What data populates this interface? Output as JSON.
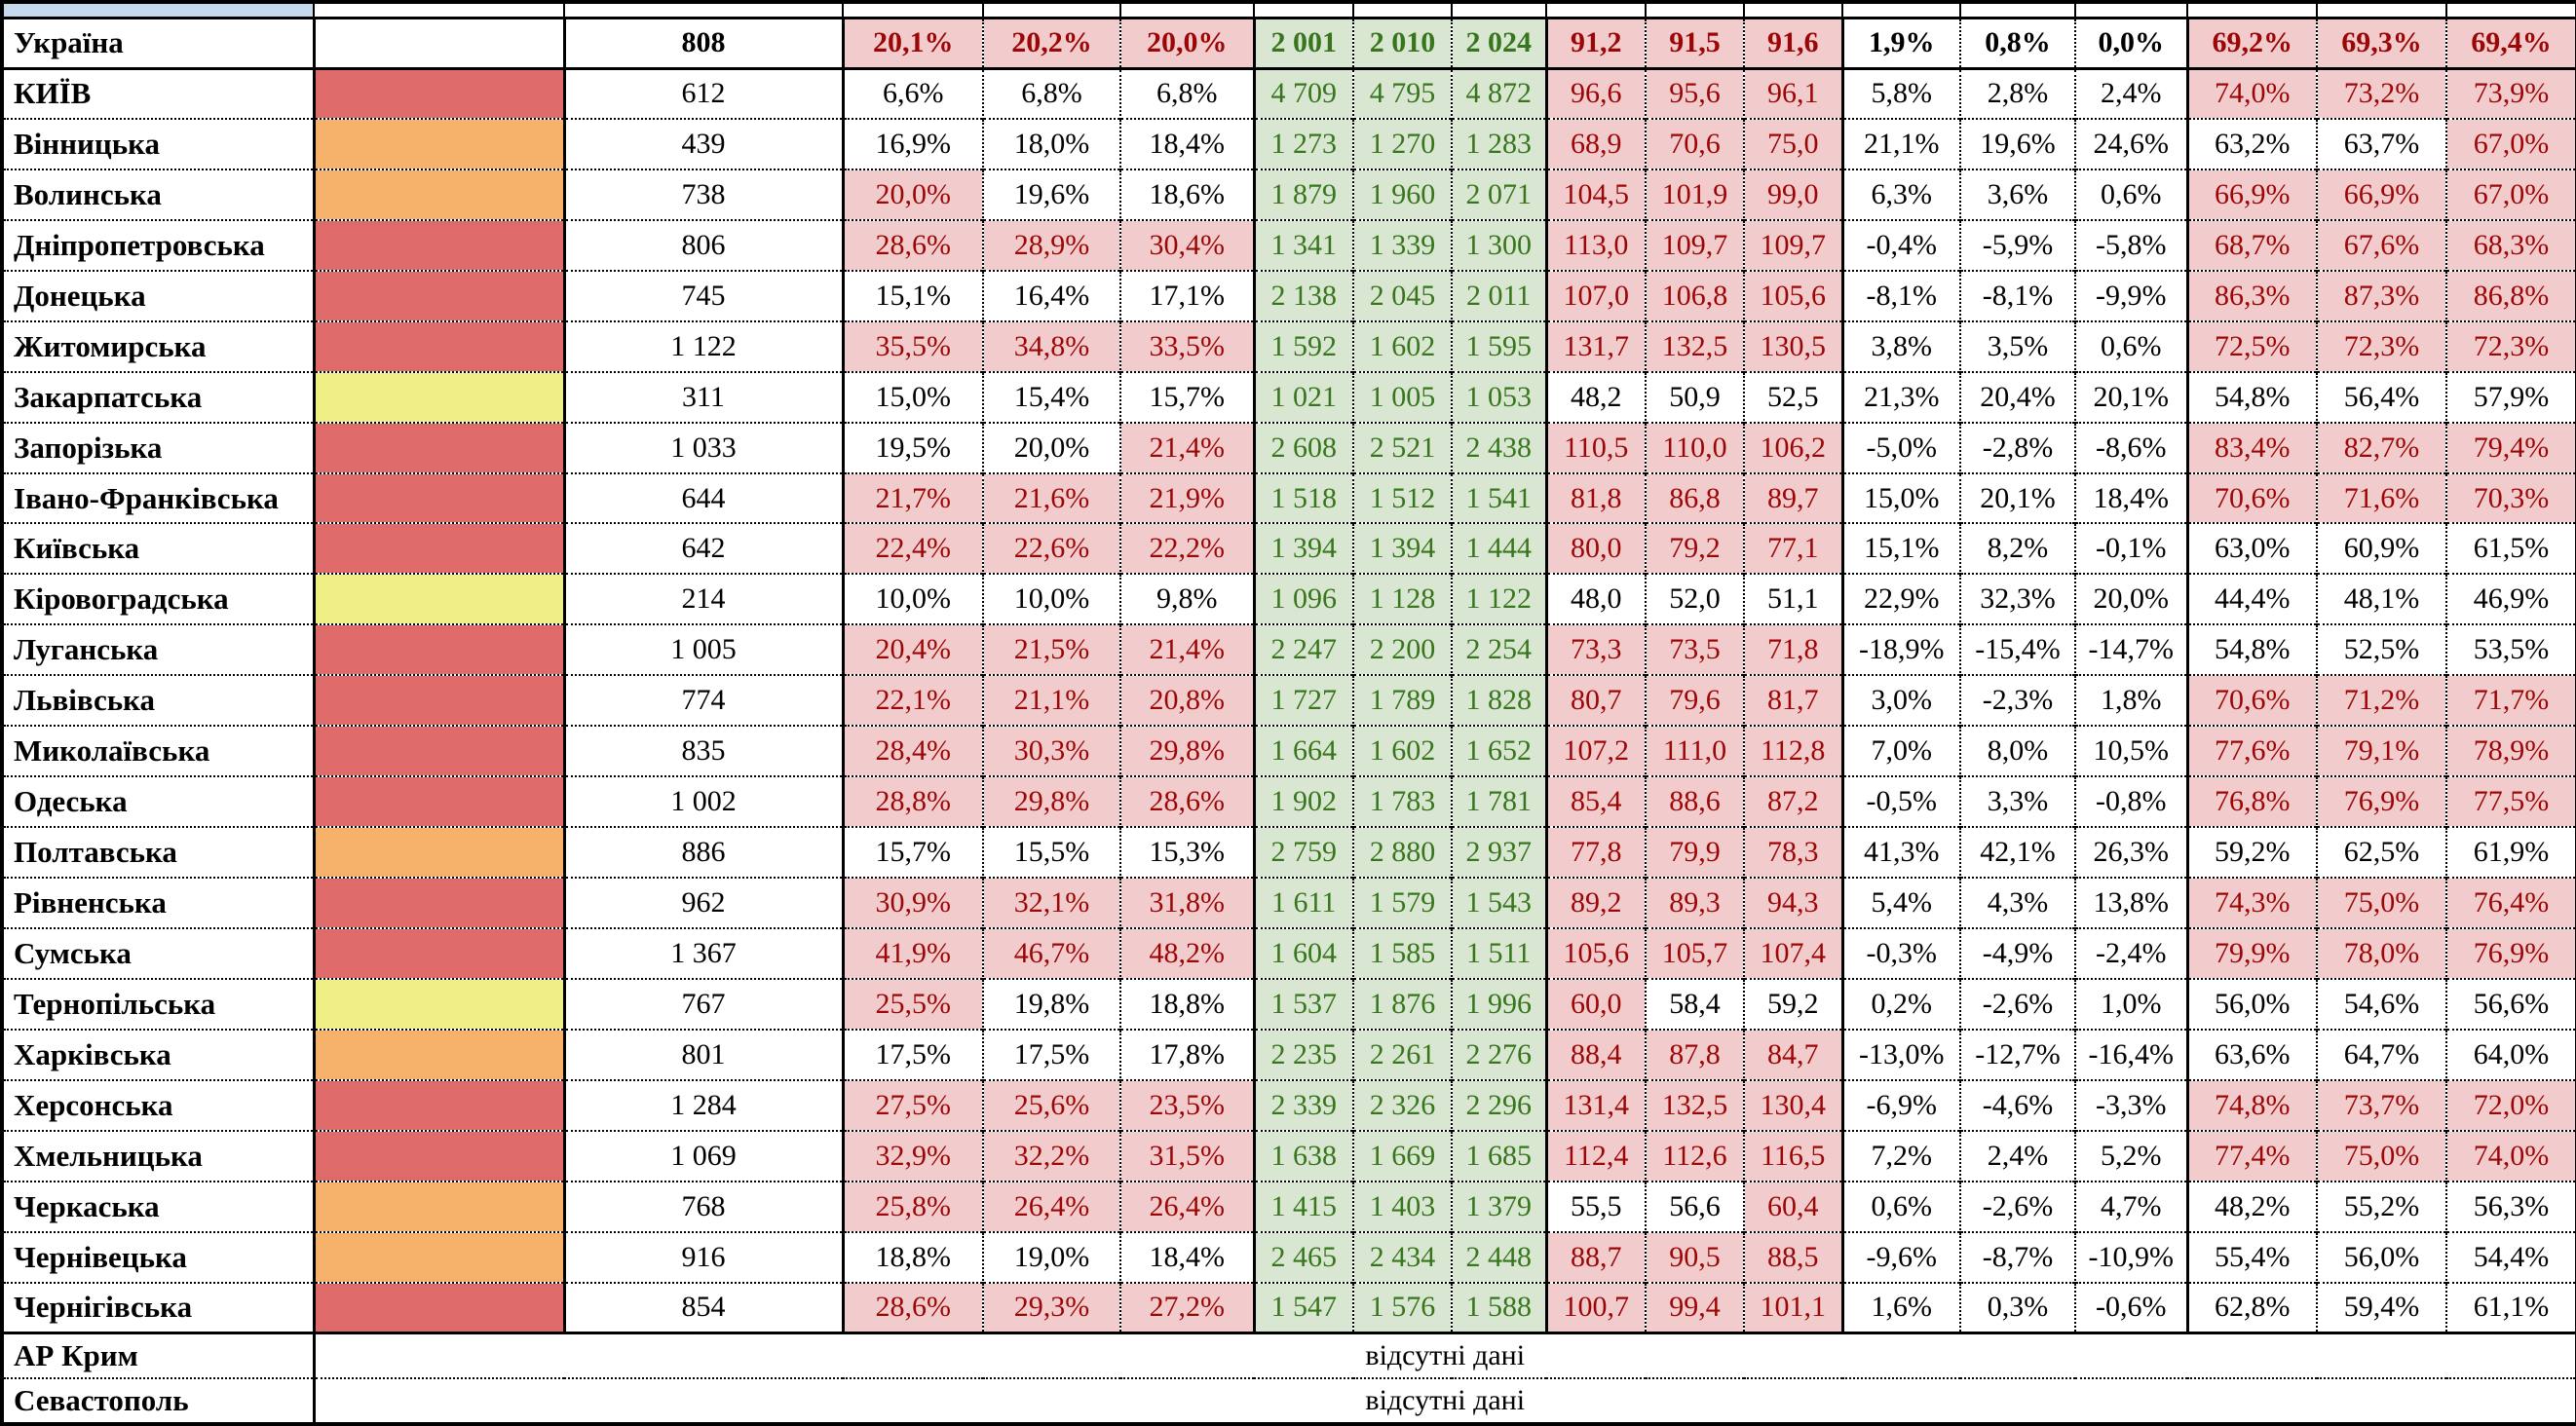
{
  "missing_data_label": "відсутні дані",
  "colors": {
    "pink_bg": "#F2CCCC",
    "dark_red_text": "#9C0606",
    "green_bg": "#D9E7D2",
    "green_text": "#38761D",
    "swatch_red": "#DE6A6A",
    "swatch_orange": "#F6B26B",
    "swatch_yellow": "#F0EF85",
    "header_blue": "#C4D9EC"
  },
  "summary": {
    "name": "Україна",
    "count": "808",
    "pct_a": [
      "20,1%",
      "20,2%",
      "20,0%"
    ],
    "pct_a_hot": [
      1,
      1,
      1
    ],
    "abs": [
      "2 001",
      "2 010",
      "2 024"
    ],
    "ratio": [
      "91,2",
      "91,5",
      "91,6"
    ],
    "ratio_hot": [
      1,
      1,
      1
    ],
    "growth": [
      "1,9%",
      "0,8%",
      "0,0%"
    ],
    "pct_b": [
      "69,2%",
      "69,3%",
      "69,4%"
    ],
    "pct_b_hot": [
      1,
      1,
      1
    ]
  },
  "rows": [
    {
      "name": "КИЇВ",
      "swatch": "red",
      "count": "612",
      "pct_a": [
        "6,6%",
        "6,8%",
        "6,8%"
      ],
      "pct_a_hot": [
        0,
        0,
        0
      ],
      "abs": [
        "4 709",
        "4 795",
        "4 872"
      ],
      "ratio": [
        "96,6",
        "95,6",
        "96,1"
      ],
      "ratio_hot": [
        1,
        1,
        1
      ],
      "growth": [
        "5,8%",
        "2,8%",
        "2,4%"
      ],
      "pct_b": [
        "74,0%",
        "73,2%",
        "73,9%"
      ],
      "pct_b_hot": [
        1,
        1,
        1
      ]
    },
    {
      "name": "Вінницька",
      "swatch": "orange",
      "count": "439",
      "pct_a": [
        "16,9%",
        "18,0%",
        "18,4%"
      ],
      "pct_a_hot": [
        0,
        0,
        0
      ],
      "abs": [
        "1 273",
        "1 270",
        "1 283"
      ],
      "ratio": [
        "68,9",
        "70,6",
        "75,0"
      ],
      "ratio_hot": [
        1,
        1,
        1
      ],
      "growth": [
        "21,1%",
        "19,6%",
        "24,6%"
      ],
      "pct_b": [
        "63,2%",
        "63,7%",
        "67,0%"
      ],
      "pct_b_hot": [
        0,
        0,
        1
      ]
    },
    {
      "name": "Волинська",
      "swatch": "orange",
      "count": "738",
      "pct_a": [
        "20,0%",
        "19,6%",
        "18,6%"
      ],
      "pct_a_hot": [
        1,
        0,
        0
      ],
      "abs": [
        "1 879",
        "1 960",
        "2 071"
      ],
      "ratio": [
        "104,5",
        "101,9",
        "99,0"
      ],
      "ratio_hot": [
        1,
        1,
        1
      ],
      "growth": [
        "6,3%",
        "3,6%",
        "0,6%"
      ],
      "pct_b": [
        "66,9%",
        "66,9%",
        "67,0%"
      ],
      "pct_b_hot": [
        1,
        1,
        1
      ]
    },
    {
      "name": "Дніпропетровська",
      "swatch": "red",
      "count": "806",
      "pct_a": [
        "28,6%",
        "28,9%",
        "30,4%"
      ],
      "pct_a_hot": [
        1,
        1,
        1
      ],
      "abs": [
        "1 341",
        "1 339",
        "1 300"
      ],
      "ratio": [
        "113,0",
        "109,7",
        "109,7"
      ],
      "ratio_hot": [
        1,
        1,
        1
      ],
      "growth": [
        "-0,4%",
        "-5,9%",
        "-5,8%"
      ],
      "pct_b": [
        "68,7%",
        "67,6%",
        "68,3%"
      ],
      "pct_b_hot": [
        1,
        1,
        1
      ]
    },
    {
      "name": "Донецька",
      "swatch": "red",
      "count": "745",
      "pct_a": [
        "15,1%",
        "16,4%",
        "17,1%"
      ],
      "pct_a_hot": [
        0,
        0,
        0
      ],
      "abs": [
        "2 138",
        "2 045",
        "2 011"
      ],
      "ratio": [
        "107,0",
        "106,8",
        "105,6"
      ],
      "ratio_hot": [
        1,
        1,
        1
      ],
      "growth": [
        "-8,1%",
        "-8,1%",
        "-9,9%"
      ],
      "pct_b": [
        "86,3%",
        "87,3%",
        "86,8%"
      ],
      "pct_b_hot": [
        1,
        1,
        1
      ]
    },
    {
      "name": "Житомирська",
      "swatch": "red",
      "count": "1 122",
      "pct_a": [
        "35,5%",
        "34,8%",
        "33,5%"
      ],
      "pct_a_hot": [
        1,
        1,
        1
      ],
      "abs": [
        "1 592",
        "1 602",
        "1 595"
      ],
      "ratio": [
        "131,7",
        "132,5",
        "130,5"
      ],
      "ratio_hot": [
        1,
        1,
        1
      ],
      "growth": [
        "3,8%",
        "3,5%",
        "0,6%"
      ],
      "pct_b": [
        "72,5%",
        "72,3%",
        "72,3%"
      ],
      "pct_b_hot": [
        1,
        1,
        1
      ]
    },
    {
      "name": "Закарпатська",
      "swatch": "yellow",
      "count": "311",
      "pct_a": [
        "15,0%",
        "15,4%",
        "15,7%"
      ],
      "pct_a_hot": [
        0,
        0,
        0
      ],
      "abs": [
        "1 021",
        "1 005",
        "1 053"
      ],
      "ratio": [
        "48,2",
        "50,9",
        "52,5"
      ],
      "ratio_hot": [
        0,
        0,
        0
      ],
      "growth": [
        "21,3%",
        "20,4%",
        "20,1%"
      ],
      "pct_b": [
        "54,8%",
        "56,4%",
        "57,9%"
      ],
      "pct_b_hot": [
        0,
        0,
        0
      ]
    },
    {
      "name": "Запорізька",
      "swatch": "red",
      "count": "1 033",
      "pct_a": [
        "19,5%",
        "20,0%",
        "21,4%"
      ],
      "pct_a_hot": [
        0,
        0,
        1
      ],
      "abs": [
        "2 608",
        "2 521",
        "2 438"
      ],
      "ratio": [
        "110,5",
        "110,0",
        "106,2"
      ],
      "ratio_hot": [
        1,
        1,
        1
      ],
      "growth": [
        "-5,0%",
        "-2,8%",
        "-8,6%"
      ],
      "pct_b": [
        "83,4%",
        "82,7%",
        "79,4%"
      ],
      "pct_b_hot": [
        1,
        1,
        1
      ]
    },
    {
      "name": "Івано-Франківська",
      "swatch": "red",
      "count": "644",
      "pct_a": [
        "21,7%",
        "21,6%",
        "21,9%"
      ],
      "pct_a_hot": [
        1,
        1,
        1
      ],
      "abs": [
        "1 518",
        "1 512",
        "1 541"
      ],
      "ratio": [
        "81,8",
        "86,8",
        "89,7"
      ],
      "ratio_hot": [
        1,
        1,
        1
      ],
      "growth": [
        "15,0%",
        "20,1%",
        "18,4%"
      ],
      "pct_b": [
        "70,6%",
        "71,6%",
        "70,3%"
      ],
      "pct_b_hot": [
        1,
        1,
        1
      ]
    },
    {
      "name": "Київська",
      "swatch": "red",
      "count": "642",
      "pct_a": [
        "22,4%",
        "22,6%",
        "22,2%"
      ],
      "pct_a_hot": [
        1,
        1,
        1
      ],
      "abs": [
        "1 394",
        "1 394",
        "1 444"
      ],
      "ratio": [
        "80,0",
        "79,2",
        "77,1"
      ],
      "ratio_hot": [
        1,
        1,
        1
      ],
      "growth": [
        "15,1%",
        "8,2%",
        "-0,1%"
      ],
      "pct_b": [
        "63,0%",
        "60,9%",
        "61,5%"
      ],
      "pct_b_hot": [
        0,
        0,
        0
      ]
    },
    {
      "name": "Кіровоградська",
      "swatch": "yellow",
      "count": "214",
      "pct_a": [
        "10,0%",
        "10,0%",
        "9,8%"
      ],
      "pct_a_hot": [
        0,
        0,
        0
      ],
      "abs": [
        "1 096",
        "1 128",
        "1 122"
      ],
      "ratio": [
        "48,0",
        "52,0",
        "51,1"
      ],
      "ratio_hot": [
        0,
        0,
        0
      ],
      "growth": [
        "22,9%",
        "32,3%",
        "20,0%"
      ],
      "pct_b": [
        "44,4%",
        "48,1%",
        "46,9%"
      ],
      "pct_b_hot": [
        0,
        0,
        0
      ]
    },
    {
      "name": "Луганська",
      "swatch": "red",
      "count": "1 005",
      "pct_a": [
        "20,4%",
        "21,5%",
        "21,4%"
      ],
      "pct_a_hot": [
        1,
        1,
        1
      ],
      "abs": [
        "2 247",
        "2 200",
        "2 254"
      ],
      "ratio": [
        "73,3",
        "73,5",
        "71,8"
      ],
      "ratio_hot": [
        1,
        1,
        1
      ],
      "growth": [
        "-18,9%",
        "-15,4%",
        "-14,7%"
      ],
      "pct_b": [
        "54,8%",
        "52,5%",
        "53,5%"
      ],
      "pct_b_hot": [
        0,
        0,
        0
      ]
    },
    {
      "name": "Львівська",
      "swatch": "red",
      "count": "774",
      "pct_a": [
        "22,1%",
        "21,1%",
        "20,8%"
      ],
      "pct_a_hot": [
        1,
        1,
        1
      ],
      "abs": [
        "1 727",
        "1 789",
        "1 828"
      ],
      "ratio": [
        "80,7",
        "79,6",
        "81,7"
      ],
      "ratio_hot": [
        1,
        1,
        1
      ],
      "growth": [
        "3,0%",
        "-2,3%",
        "1,8%"
      ],
      "pct_b": [
        "70,6%",
        "71,2%",
        "71,7%"
      ],
      "pct_b_hot": [
        1,
        1,
        1
      ]
    },
    {
      "name": "Миколаївська",
      "swatch": "red",
      "count": "835",
      "pct_a": [
        "28,4%",
        "30,3%",
        "29,8%"
      ],
      "pct_a_hot": [
        1,
        1,
        1
      ],
      "abs": [
        "1 664",
        "1 602",
        "1 652"
      ],
      "ratio": [
        "107,2",
        "111,0",
        "112,8"
      ],
      "ratio_hot": [
        1,
        1,
        1
      ],
      "growth": [
        "7,0%",
        "8,0%",
        "10,5%"
      ],
      "pct_b": [
        "77,6%",
        "79,1%",
        "78,9%"
      ],
      "pct_b_hot": [
        1,
        1,
        1
      ]
    },
    {
      "name": "Одеська",
      "swatch": "red",
      "count": "1 002",
      "pct_a": [
        "28,8%",
        "29,8%",
        "28,6%"
      ],
      "pct_a_hot": [
        1,
        1,
        1
      ],
      "abs": [
        "1 902",
        "1 783",
        "1 781"
      ],
      "ratio": [
        "85,4",
        "88,6",
        "87,2"
      ],
      "ratio_hot": [
        1,
        1,
        1
      ],
      "growth": [
        "-0,5%",
        "3,3%",
        "-0,8%"
      ],
      "pct_b": [
        "76,8%",
        "76,9%",
        "77,5%"
      ],
      "pct_b_hot": [
        1,
        1,
        1
      ]
    },
    {
      "name": "Полтавська",
      "swatch": "orange",
      "count": "886",
      "pct_a": [
        "15,7%",
        "15,5%",
        "15,3%"
      ],
      "pct_a_hot": [
        0,
        0,
        0
      ],
      "abs": [
        "2 759",
        "2 880",
        "2 937"
      ],
      "ratio": [
        "77,8",
        "79,9",
        "78,3"
      ],
      "ratio_hot": [
        1,
        1,
        1
      ],
      "growth": [
        "41,3%",
        "42,1%",
        "26,3%"
      ],
      "pct_b": [
        "59,2%",
        "62,5%",
        "61,9%"
      ],
      "pct_b_hot": [
        0,
        0,
        0
      ]
    },
    {
      "name": "Рівненська",
      "swatch": "red",
      "count": "962",
      "pct_a": [
        "30,9%",
        "32,1%",
        "31,8%"
      ],
      "pct_a_hot": [
        1,
        1,
        1
      ],
      "abs": [
        "1 611",
        "1 579",
        "1 543"
      ],
      "ratio": [
        "89,2",
        "89,3",
        "94,3"
      ],
      "ratio_hot": [
        1,
        1,
        1
      ],
      "growth": [
        "5,4%",
        "4,3%",
        "13,8%"
      ],
      "pct_b": [
        "74,3%",
        "75,0%",
        "76,4%"
      ],
      "pct_b_hot": [
        1,
        1,
        1
      ]
    },
    {
      "name": "Сумська",
      "swatch": "red",
      "count": "1 367",
      "pct_a": [
        "41,9%",
        "46,7%",
        "48,2%"
      ],
      "pct_a_hot": [
        1,
        1,
        1
      ],
      "abs": [
        "1 604",
        "1 585",
        "1 511"
      ],
      "ratio": [
        "105,6",
        "105,7",
        "107,4"
      ],
      "ratio_hot": [
        1,
        1,
        1
      ],
      "growth": [
        "-0,3%",
        "-4,9%",
        "-2,4%"
      ],
      "pct_b": [
        "79,9%",
        "78,0%",
        "76,9%"
      ],
      "pct_b_hot": [
        1,
        1,
        1
      ]
    },
    {
      "name": "Тернопільська",
      "swatch": "yellow",
      "count": "767",
      "pct_a": [
        "25,5%",
        "19,8%",
        "18,8%"
      ],
      "pct_a_hot": [
        1,
        0,
        0
      ],
      "abs": [
        "1 537",
        "1 876",
        "1 996"
      ],
      "ratio": [
        "60,0",
        "58,4",
        "59,2"
      ],
      "ratio_hot": [
        1,
        0,
        0
      ],
      "growth": [
        "0,2%",
        "-2,6%",
        "1,0%"
      ],
      "pct_b": [
        "56,0%",
        "54,6%",
        "56,6%"
      ],
      "pct_b_hot": [
        0,
        0,
        0
      ]
    },
    {
      "name": "Харківська",
      "swatch": "orange",
      "count": "801",
      "pct_a": [
        "17,5%",
        "17,5%",
        "17,8%"
      ],
      "pct_a_hot": [
        0,
        0,
        0
      ],
      "abs": [
        "2 235",
        "2 261",
        "2 276"
      ],
      "ratio": [
        "88,4",
        "87,8",
        "84,7"
      ],
      "ratio_hot": [
        1,
        1,
        1
      ],
      "growth": [
        "-13,0%",
        "-12,7%",
        "-16,4%"
      ],
      "pct_b": [
        "63,6%",
        "64,7%",
        "64,0%"
      ],
      "pct_b_hot": [
        0,
        0,
        0
      ]
    },
    {
      "name": "Херсонська",
      "swatch": "red",
      "count": "1 284",
      "pct_a": [
        "27,5%",
        "25,6%",
        "23,5%"
      ],
      "pct_a_hot": [
        1,
        1,
        1
      ],
      "abs": [
        "2 339",
        "2 326",
        "2 296"
      ],
      "ratio": [
        "131,4",
        "132,5",
        "130,4"
      ],
      "ratio_hot": [
        1,
        1,
        1
      ],
      "growth": [
        "-6,9%",
        "-4,6%",
        "-3,3%"
      ],
      "pct_b": [
        "74,8%",
        "73,7%",
        "72,0%"
      ],
      "pct_b_hot": [
        1,
        1,
        1
      ]
    },
    {
      "name": "Хмельницька",
      "swatch": "red",
      "count": "1 069",
      "pct_a": [
        "32,9%",
        "32,2%",
        "31,5%"
      ],
      "pct_a_hot": [
        1,
        1,
        1
      ],
      "abs": [
        "1 638",
        "1 669",
        "1 685"
      ],
      "ratio": [
        "112,4",
        "112,6",
        "116,5"
      ],
      "ratio_hot": [
        1,
        1,
        1
      ],
      "growth": [
        "7,2%",
        "2,4%",
        "5,2%"
      ],
      "pct_b": [
        "77,4%",
        "75,0%",
        "74,0%"
      ],
      "pct_b_hot": [
        1,
        1,
        1
      ]
    },
    {
      "name": "Черкаська",
      "swatch": "orange",
      "count": "768",
      "pct_a": [
        "25,8%",
        "26,4%",
        "26,4%"
      ],
      "pct_a_hot": [
        1,
        1,
        1
      ],
      "abs": [
        "1 415",
        "1 403",
        "1 379"
      ],
      "ratio": [
        "55,5",
        "56,6",
        "60,4"
      ],
      "ratio_hot": [
        0,
        0,
        1
      ],
      "growth": [
        "0,6%",
        "-2,6%",
        "4,7%"
      ],
      "pct_b": [
        "48,2%",
        "55,2%",
        "56,3%"
      ],
      "pct_b_hot": [
        0,
        0,
        0
      ]
    },
    {
      "name": "Чернівецька",
      "swatch": "orange",
      "count": "916",
      "pct_a": [
        "18,8%",
        "19,0%",
        "18,4%"
      ],
      "pct_a_hot": [
        0,
        0,
        0
      ],
      "abs": [
        "2 465",
        "2 434",
        "2 448"
      ],
      "ratio": [
        "88,7",
        "90,5",
        "88,5"
      ],
      "ratio_hot": [
        1,
        1,
        1
      ],
      "growth": [
        "-9,6%",
        "-8,7%",
        "-10,9%"
      ],
      "pct_b": [
        "55,4%",
        "56,0%",
        "54,4%"
      ],
      "pct_b_hot": [
        0,
        0,
        0
      ]
    },
    {
      "name": "Чернігівська",
      "swatch": "red",
      "count": "854",
      "pct_a": [
        "28,6%",
        "29,3%",
        "27,2%"
      ],
      "pct_a_hot": [
        1,
        1,
        1
      ],
      "abs": [
        "1 547",
        "1 576",
        "1 588"
      ],
      "ratio": [
        "100,7",
        "99,4",
        "101,1"
      ],
      "ratio_hot": [
        1,
        1,
        1
      ],
      "growth": [
        "1,6%",
        "0,3%",
        "-0,6%"
      ],
      "pct_b": [
        "62,8%",
        "59,4%",
        "61,1%"
      ],
      "pct_b_hot": [
        0,
        0,
        0
      ]
    }
  ],
  "no_data_rows": [
    {
      "name": "АР Крим"
    },
    {
      "name": "Севастополь"
    }
  ]
}
